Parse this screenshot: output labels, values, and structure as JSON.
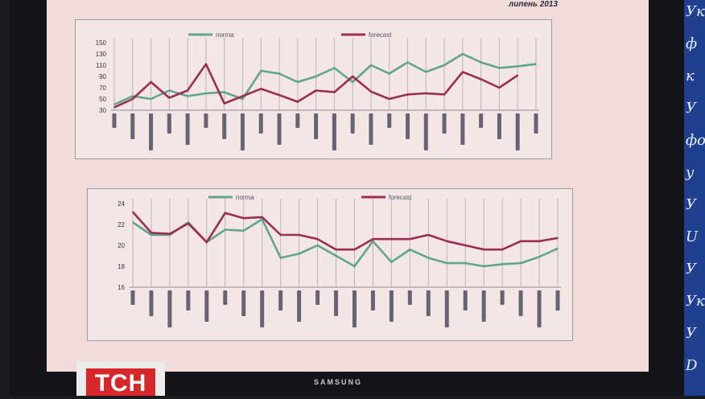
{
  "header": {
    "period_label": "липень 2013"
  },
  "monitor": {
    "brand": "SAMSUNG"
  },
  "logo": {
    "channel": "ТСН"
  },
  "side_banner": {
    "glyphs": [
      "Ук",
      "ф",
      "к",
      "У",
      "фо",
      "у",
      "У",
      "U",
      "У",
      "Ук",
      "У",
      "D"
    ]
  },
  "chart_data": [
    {
      "type": "line",
      "legend": [
        "norma",
        "forecast"
      ],
      "y_ticks": [
        "150",
        "130",
        "110",
        "90",
        "70",
        "50",
        "30"
      ],
      "ylim": [
        30,
        150
      ],
      "colors": {
        "norma": "#5fa58f",
        "forecast": "#9b2d55"
      },
      "series": [
        {
          "name": "norma",
          "values": [
            40,
            55,
            50,
            65,
            55,
            60,
            62,
            50,
            100,
            95,
            80,
            90,
            105,
            80,
            110,
            95,
            115,
            98,
            110,
            130,
            115,
            105,
            108,
            112
          ]
        },
        {
          "name": "forecast",
          "values": [
            35,
            50,
            80,
            52,
            65,
            112,
            42,
            55,
            68,
            57,
            45,
            65,
            62,
            90,
            63,
            50,
            58,
            60,
            58,
            98,
            85,
            70,
            92,
            null
          ]
        }
      ],
      "category_count": 24
    },
    {
      "type": "line",
      "legend": [
        "norma",
        "forecast"
      ],
      "y_ticks": [
        "24",
        "22",
        "20",
        "18",
        "16"
      ],
      "ylim": [
        16,
        24
      ],
      "colors": {
        "norma": "#5fa58f",
        "forecast": "#9b2d55"
      },
      "series": [
        {
          "name": "norma",
          "values": [
            22.2,
            21.0,
            21.0,
            22.2,
            20.3,
            21.5,
            21.4,
            22.5,
            18.8,
            19.2,
            20.0,
            19.0,
            18.0,
            20.4,
            18.4,
            19.6,
            18.8,
            18.3,
            18.3,
            18.0,
            18.2,
            18.3,
            18.9,
            19.7
          ]
        },
        {
          "name": "forecast",
          "values": [
            23.2,
            21.2,
            21.1,
            22.1,
            20.3,
            23.1,
            22.6,
            22.7,
            21.0,
            21.0,
            20.6,
            19.6,
            19.6,
            20.6,
            20.6,
            20.6,
            21.0,
            20.4,
            20.0,
            19.6,
            19.6,
            20.4,
            20.4,
            20.7
          ]
        }
      ],
      "category_count": 24
    }
  ]
}
